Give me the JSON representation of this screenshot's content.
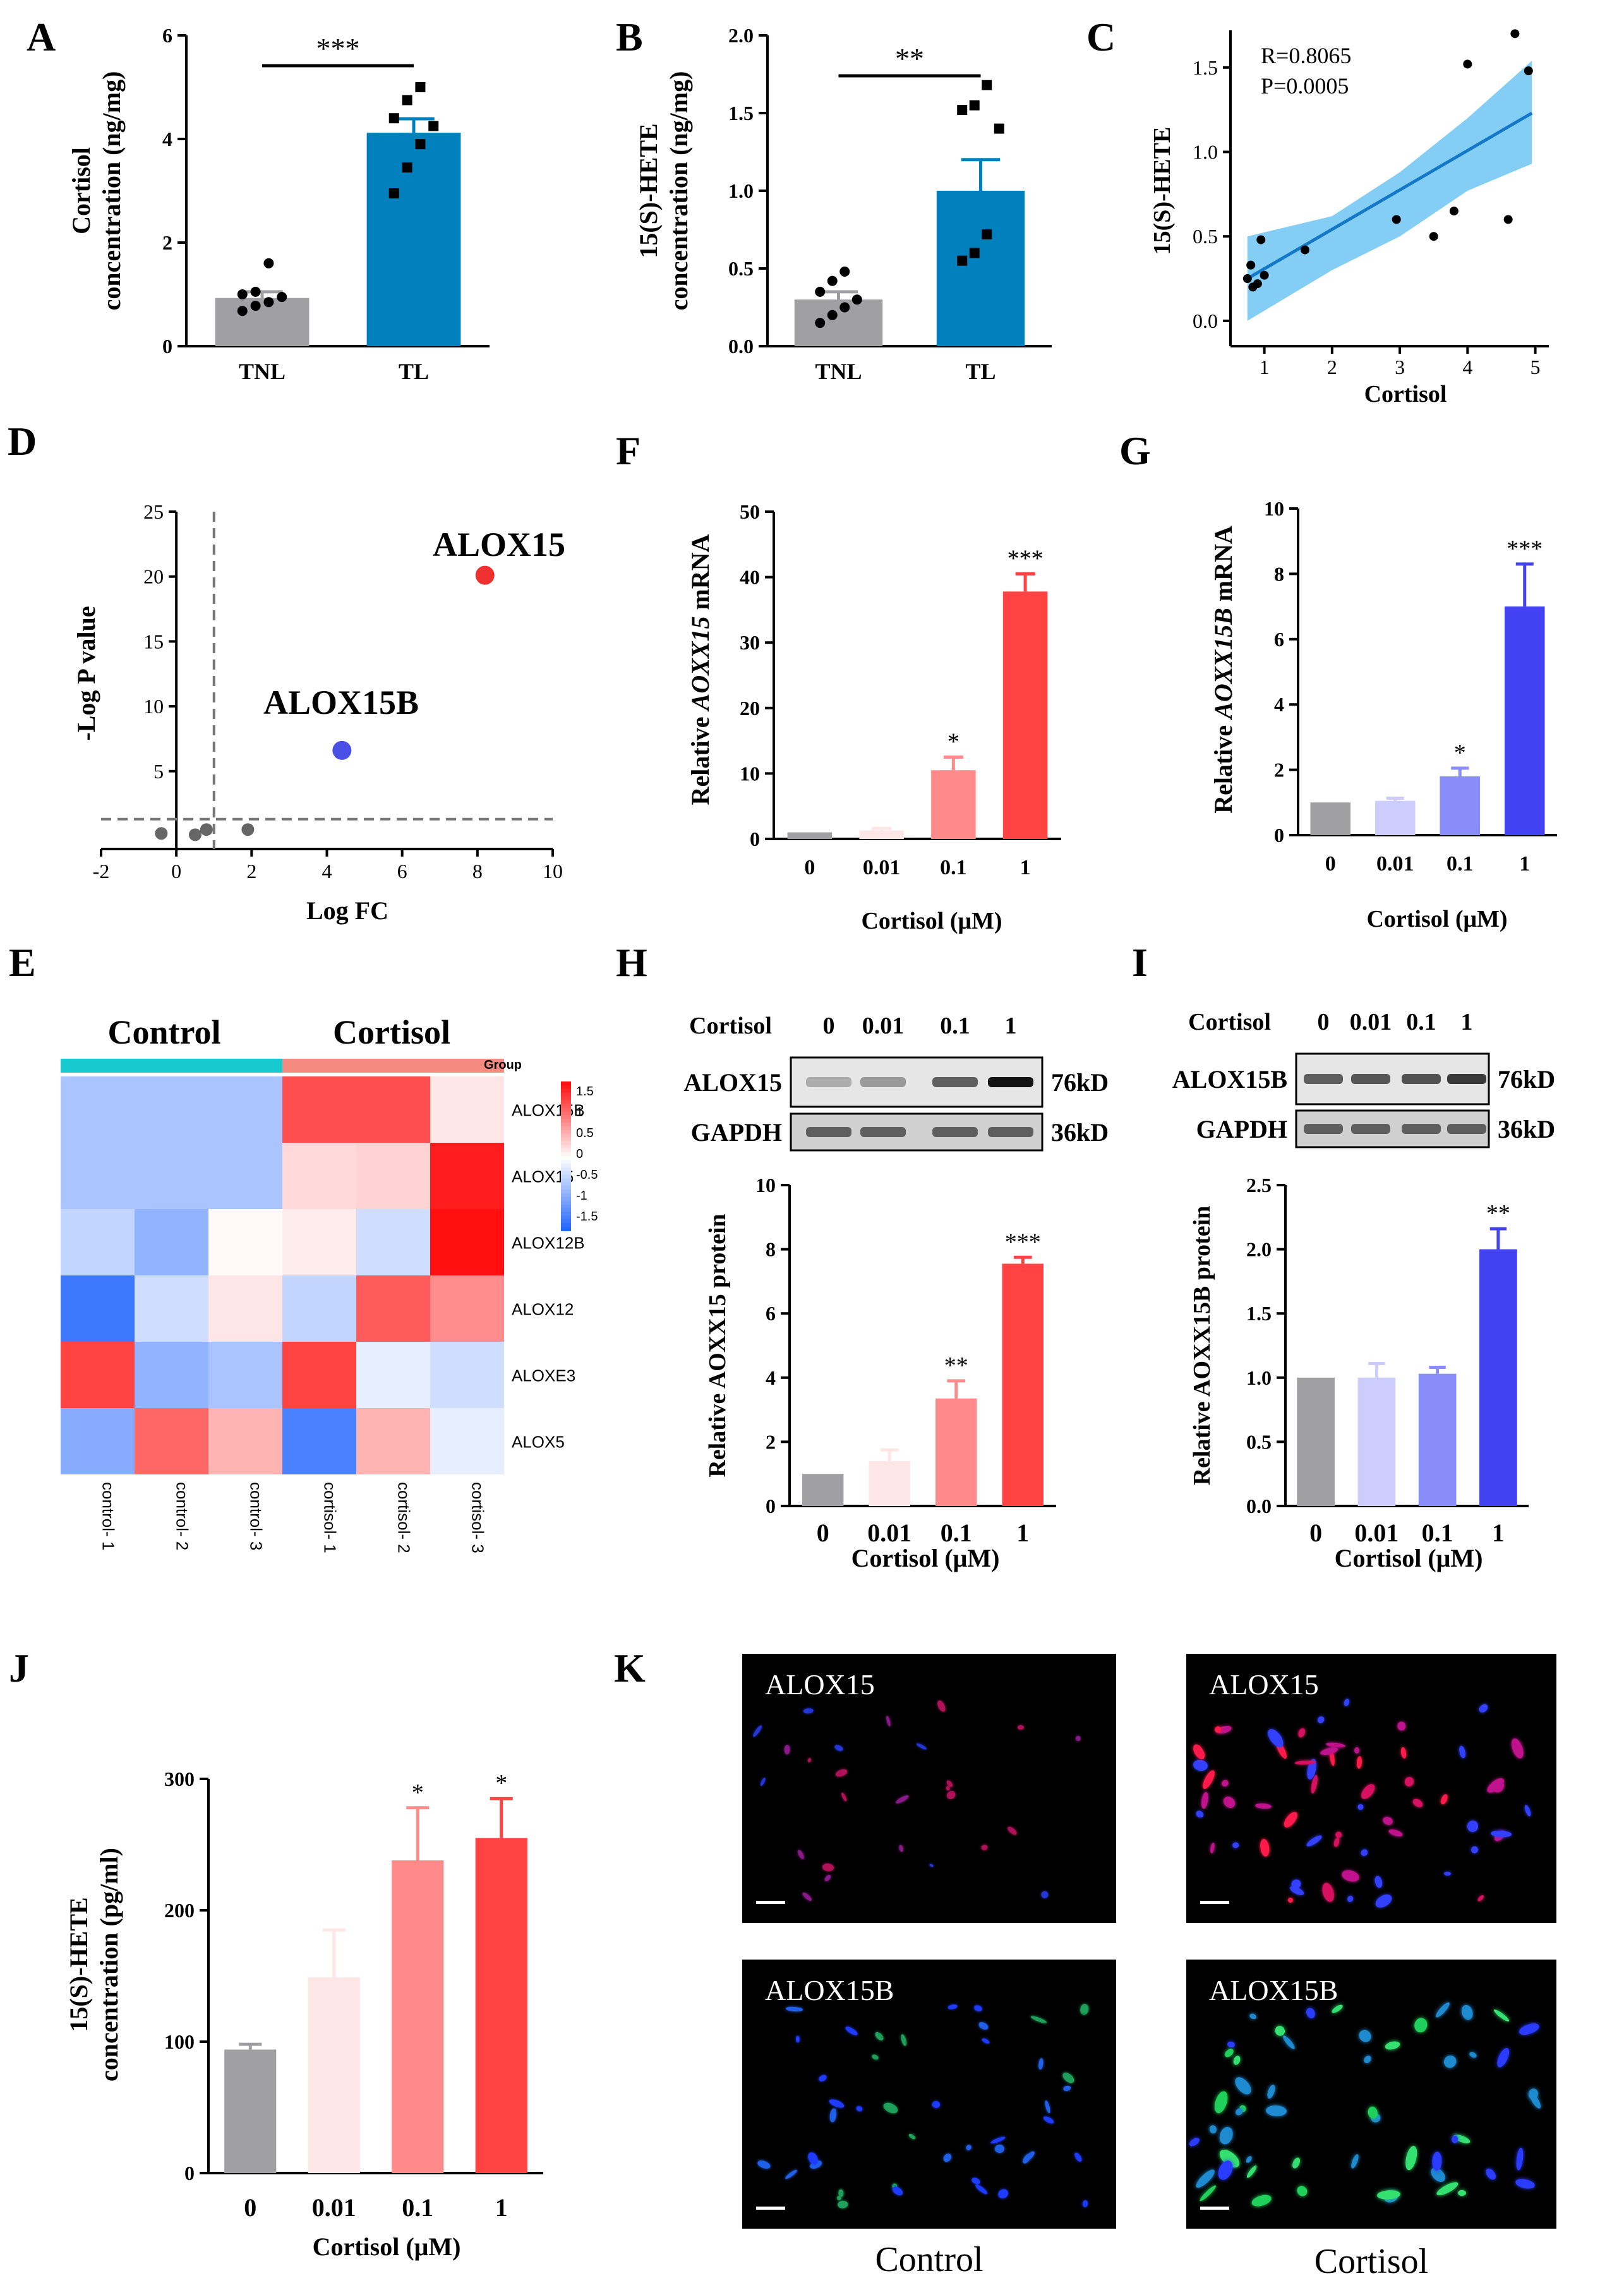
{
  "panels": {
    "A": {
      "letter": "A",
      "title": "",
      "ylabel": "Cortisol concentration (ng/mg)",
      "ylabel_lines": [
        "Cortisol",
        "concentration (ng/mg)"
      ],
      "ylim": [
        0,
        6
      ],
      "yticks": [
        0,
        2,
        4,
        6
      ],
      "categories": [
        "TNL",
        "TL"
      ],
      "values": [
        0.93,
        4.12
      ],
      "errors": [
        0.12,
        0.27
      ],
      "points": [
        [
          0.68,
          0.78,
          0.85,
          0.95,
          1.0,
          1.05,
          1.6
        ],
        [
          2.95,
          3.45,
          3.9,
          4.25,
          4.4,
          4.75,
          5.0
        ]
      ],
      "colors": [
        "#a0a0a2",
        "#0080bc"
      ],
      "significance": "***"
    },
    "B": {
      "letter": "B",
      "ylabel": "15(S)-HETE concentration (ng/mg)",
      "ylabel_lines": [
        "15(S)-HETE",
        "concentration (ng/mg)"
      ],
      "ylim": [
        0,
        2.0
      ],
      "yticks": [
        "0.0",
        "0.5",
        "1.0",
        "1.5",
        "2.0"
      ],
      "categories": [
        "TNL",
        "TL"
      ],
      "values": [
        0.3,
        1.0
      ],
      "errors": [
        0.05,
        0.2
      ],
      "points": [
        [
          0.15,
          0.2,
          0.25,
          0.3,
          0.35,
          0.42,
          0.48
        ],
        [
          0.55,
          0.6,
          0.72,
          1.4,
          1.52,
          1.55,
          1.68
        ]
      ],
      "colors": [
        "#a0a0a2",
        "#0080bc"
      ],
      "significance": "**"
    },
    "C": {
      "letter": "C",
      "type": "scatter",
      "xlabel": "Cortisol",
      "ylabel": "15(S)-HETE",
      "xlim": [
        0.5,
        5.2
      ],
      "ylim": [
        -0.15,
        1.72
      ],
      "xticks": [
        1,
        2,
        3,
        4,
        5
      ],
      "yticks": [
        "0.0",
        "0.5",
        "1.0",
        "1.5"
      ],
      "points": [
        [
          0.75,
          0.25
        ],
        [
          0.8,
          0.33
        ],
        [
          0.83,
          0.2
        ],
        [
          0.9,
          0.22
        ],
        [
          0.95,
          0.48
        ],
        [
          1.0,
          0.27
        ],
        [
          1.6,
          0.42
        ],
        [
          2.95,
          0.6
        ],
        [
          3.5,
          0.5
        ],
        [
          3.8,
          0.65
        ],
        [
          4.0,
          1.52
        ],
        [
          4.6,
          0.6
        ],
        [
          4.7,
          1.7
        ],
        [
          4.9,
          1.48
        ]
      ],
      "fit": [
        [
          0.75,
          0.25
        ],
        [
          4.95,
          1.23
        ]
      ],
      "band_upper": [
        [
          0.75,
          0.5
        ],
        [
          2.0,
          0.62
        ],
        [
          3.0,
          0.88
        ],
        [
          4.0,
          1.2
        ],
        [
          4.95,
          1.54
        ]
      ],
      "band_lower": [
        [
          4.95,
          0.93
        ],
        [
          4.0,
          0.77
        ],
        [
          3.0,
          0.5
        ],
        [
          2.0,
          0.3
        ],
        [
          0.75,
          0.0
        ]
      ],
      "R": "R=0.8065",
      "P": "P=0.0005",
      "line_color": "#1478c8",
      "band_color": "#6ec5f5"
    },
    "D": {
      "letter": "D",
      "type": "volcano",
      "xlabel": "Log FC",
      "ylabel": "-Log P value",
      "xlim": [
        -2,
        10
      ],
      "ylim": [
        -1,
        25
      ],
      "xticks": [
        -2,
        0,
        2,
        4,
        6,
        8,
        10
      ],
      "yticks": [
        5,
        10,
        15,
        20,
        25
      ],
      "gray_points": [
        [
          -0.4,
          0.2
        ],
        [
          0.5,
          0.1
        ],
        [
          0.8,
          0.5
        ],
        [
          1.9,
          0.5
        ]
      ],
      "highlights": [
        {
          "label": "ALOX15",
          "x": 8.2,
          "y": 20.1,
          "color": "#ee3030"
        },
        {
          "label": "ALOX15B",
          "x": 4.4,
          "y": 6.6,
          "color": "#4a4fe6"
        }
      ],
      "vline": 1,
      "hline": 1.3
    },
    "E": {
      "letter": "E",
      "type": "heatmap",
      "group_labels": [
        "Control",
        "Cortisol"
      ],
      "group_colors": [
        "#19c9d0",
        "#f58b80"
      ],
      "legend_title": "Group",
      "columns": [
        "control- 1",
        "control- 2",
        "control- 3",
        "cortisol- 1",
        "cortisol- 2",
        "cortisol- 3"
      ],
      "rows": [
        "ALOX15B",
        "ALOX15",
        "ALOX12B",
        "ALOX12",
        "ALOXE3",
        "ALOX5"
      ],
      "values": [
        [
          -0.7,
          -0.7,
          -0.7,
          1.4,
          1.4,
          0.2
        ],
        [
          -0.7,
          -0.7,
          -0.7,
          0.3,
          0.35,
          1.8
        ],
        [
          -0.5,
          -0.9,
          0.05,
          0.15,
          -0.4,
          1.9
        ],
        [
          -1.6,
          -0.4,
          0.2,
          -0.5,
          1.3,
          0.9
        ],
        [
          1.5,
          -0.9,
          -0.7,
          1.5,
          -0.2,
          -0.4
        ],
        [
          -1.0,
          1.2,
          0.6,
          -1.5,
          0.6,
          -0.2
        ]
      ],
      "scale_ticks": [
        "1.5",
        "1",
        "0.5",
        "0",
        "-0.5",
        "-1",
        "-1.5"
      ]
    },
    "F": {
      "letter": "F",
      "xlabel": "Cortisol (μM)",
      "ylabel_pre": "Relative ",
      "ylabel_it": "AOXX15",
      "ylabel_post": " mRNA",
      "ylim": [
        0,
        50
      ],
      "yticks": [
        0,
        10,
        20,
        30,
        40,
        50
      ],
      "categories": [
        "0",
        "0.01",
        "0.1",
        "1"
      ],
      "values": [
        1.0,
        1.3,
        10.5,
        37.8
      ],
      "errors": [
        0,
        0.3,
        2.0,
        2.7
      ],
      "colors": [
        "#a0a0a2",
        "#ffe6e6",
        "#ff8a8a",
        "#ff4343"
      ],
      "stars": [
        "",
        "",
        "*",
        "***"
      ]
    },
    "G": {
      "letter": "G",
      "xlabel": "Cortisol (μM)",
      "ylabel_pre": "Relative ",
      "ylabel_it": "AOXX15B",
      "ylabel_post": " mRNA",
      "ylim": [
        0,
        10
      ],
      "yticks": [
        0,
        2,
        4,
        6,
        8,
        10
      ],
      "categories": [
        "0",
        "0.01",
        "0.1",
        "1"
      ],
      "values": [
        1.0,
        1.05,
        1.8,
        7.0
      ],
      "errors": [
        0,
        0.08,
        0.25,
        1.3
      ],
      "colors": [
        "#a0a0a2",
        "#ccccff",
        "#8a8cfa",
        "#4242f2"
      ],
      "stars": [
        "",
        "",
        "*",
        "***"
      ]
    },
    "H": {
      "letter": "H",
      "blot_header": "Cortisol",
      "lane_labels": [
        "0",
        "0.01",
        "0.1",
        "1"
      ],
      "blots": [
        {
          "name": "ALOX15",
          "kd": "76kD"
        },
        {
          "name": "GAPDH",
          "kd": "36kD"
        }
      ],
      "band_intensity": [
        0.15,
        0.25,
        0.55,
        0.95
      ],
      "xlabel": "Cortisol (μM)",
      "ylabel": "Relative AOXX15 protein",
      "ylim": [
        0,
        10
      ],
      "yticks": [
        0,
        2,
        4,
        6,
        8,
        10
      ],
      "categories": [
        "0",
        "0.01",
        "0.1",
        "1"
      ],
      "values": [
        1.0,
        1.4,
        3.35,
        7.55
      ],
      "errors": [
        0,
        0.35,
        0.55,
        0.2
      ],
      "colors": [
        "#a0a0a2",
        "#ffe6e6",
        "#ff8a8a",
        "#ff4343"
      ],
      "stars": [
        "",
        "",
        "**",
        "***"
      ]
    },
    "I": {
      "letter": "I",
      "blot_header": "Cortisol",
      "lane_labels": [
        "0",
        "0.01",
        "0.1",
        "1"
      ],
      "blots": [
        {
          "name": "ALOX15B",
          "kd": "76kD"
        },
        {
          "name": "GAPDH",
          "kd": "36kD"
        }
      ],
      "band_intensity": [
        0.55,
        0.6,
        0.62,
        0.75
      ],
      "xlabel": "Cortisol (μM)",
      "ylabel": "Relative AOXX15B protein",
      "ylim": [
        0,
        2.5
      ],
      "yticks": [
        "0.0",
        "0.5",
        "1.0",
        "1.5",
        "2.0",
        "2.5"
      ],
      "categories": [
        "0",
        "0.01",
        "0.1",
        "1"
      ],
      "values": [
        1.0,
        1.0,
        1.03,
        2.0
      ],
      "errors": [
        0,
        0.11,
        0.05,
        0.16
      ],
      "colors": [
        "#a0a0a2",
        "#ccccff",
        "#8a8cfa",
        "#4242f2"
      ],
      "stars": [
        "",
        "",
        "",
        "**"
      ]
    },
    "J": {
      "letter": "J",
      "xlabel": "Cortisol (μM)",
      "ylabel": "15(S)-HETE concentration (pg/ml)",
      "ylabel_lines": [
        "15(S)-HETE",
        "concentration (pg/ml)"
      ],
      "ylim": [
        0,
        300
      ],
      "yticks": [
        0,
        100,
        200,
        300
      ],
      "categories": [
        "0",
        "0.01",
        "0.1",
        "1"
      ],
      "values": [
        94,
        149,
        238,
        255
      ],
      "errors": [
        4,
        36,
        40,
        30
      ],
      "colors": [
        "#a0a0a2",
        "#ffe6e6",
        "#ff8a8a",
        "#ff4343"
      ],
      "stars": [
        "",
        "",
        "*",
        "*"
      ]
    },
    "K": {
      "letter": "K",
      "image_labels": [
        "ALOX15",
        "ALOX15",
        "ALOX15B",
        "ALOX15B"
      ],
      "captions": [
        "Control",
        "Cortisol"
      ]
    }
  }
}
